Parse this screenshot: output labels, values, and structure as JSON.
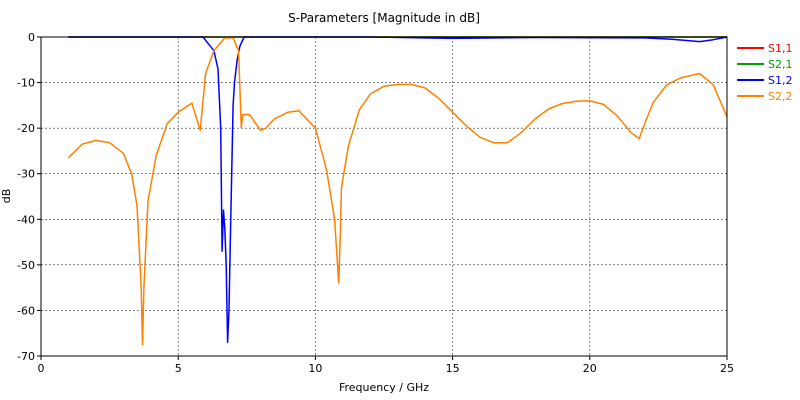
{
  "chart_data": {
    "type": "line",
    "title": "S-Parameters [Magnitude in dB]",
    "xlabel": "Frequency / GHz",
    "ylabel": "dB",
    "xlim": [
      0,
      25
    ],
    "ylim": [
      -70,
      0
    ],
    "xticks": [
      0,
      5,
      10,
      15,
      20,
      25
    ],
    "yticks": [
      0,
      -10,
      -20,
      -30,
      -40,
      -50,
      -60,
      -70
    ],
    "grid": true,
    "legend_position": "right",
    "series": [
      {
        "name": "S1,1",
        "color": "#ff0000",
        "x": [
          1,
          25
        ],
        "y": [
          0,
          0
        ]
      },
      {
        "name": "S2,1",
        "color": "#00a000",
        "x": [
          1,
          25
        ],
        "y": [
          0,
          0
        ]
      },
      {
        "name": "S1,2",
        "color": "#0000ff",
        "x": [
          1,
          5.9,
          6.1,
          6.3,
          6.45,
          6.55,
          6.6,
          6.65,
          6.7,
          6.75,
          6.8,
          6.85,
          6.9,
          6.95,
          7.0,
          7.05,
          7.15,
          7.25,
          7.4,
          8,
          12,
          15,
          18,
          22,
          23,
          24,
          24.5,
          25
        ],
        "y": [
          0,
          0,
          -1.5,
          -3,
          -7,
          -20,
          -47,
          -38,
          -42,
          -50,
          -67,
          -60,
          -45,
          -30,
          -15,
          -10,
          -5,
          -2,
          0,
          0,
          0,
          -0.3,
          -0.1,
          -0.2,
          -0.5,
          -1,
          -0.6,
          0
        ]
      },
      {
        "name": "S2,2",
        "color": "#ff8000",
        "x": [
          1.0,
          1.5,
          2.0,
          2.5,
          3.0,
          3.3,
          3.5,
          3.65,
          3.7,
          3.75,
          3.9,
          4.2,
          4.6,
          5.0,
          5.5,
          5.8,
          6.0,
          6.3,
          6.7,
          7.0,
          7.2,
          7.3,
          7.35,
          7.6,
          8.0,
          8.2,
          8.5,
          9.0,
          9.4,
          10.0,
          10.4,
          10.7,
          10.85,
          10.9,
          10.95,
          11.2,
          11.6,
          12.0,
          12.5,
          13.0,
          13.5,
          14.0,
          14.5,
          15.0,
          15.5,
          16.0,
          16.5,
          17.0,
          17.5,
          18.0,
          18.5,
          19.0,
          19.5,
          20.0,
          20.5,
          21.0,
          21.5,
          21.8,
          22.0,
          22.3,
          22.8,
          23.3,
          24.0,
          24.5,
          25.0
        ],
        "y": [
          -26.5,
          -23.5,
          -22.7,
          -23.2,
          -25.5,
          -30,
          -37,
          -55,
          -67.5,
          -55,
          -36,
          -26,
          -19,
          -16.5,
          -14.5,
          -20.5,
          -8,
          -3,
          -0.2,
          -0.2,
          -3,
          -20,
          -17,
          -17,
          -20.5,
          -20,
          -18,
          -16.5,
          -16.2,
          -20,
          -29,
          -40,
          -54,
          -45,
          -33,
          -24,
          -16,
          -12.5,
          -10.8,
          -10.4,
          -10.4,
          -11.2,
          -13.5,
          -16.5,
          -19.5,
          -22,
          -23.2,
          -23.2,
          -21,
          -18,
          -15.8,
          -14.6,
          -14.1,
          -14,
          -14.8,
          -17.3,
          -21,
          -22.3,
          -19,
          -14.5,
          -10.5,
          -9.0,
          -8.0,
          -10.5,
          -17.5
        ]
      }
    ]
  }
}
